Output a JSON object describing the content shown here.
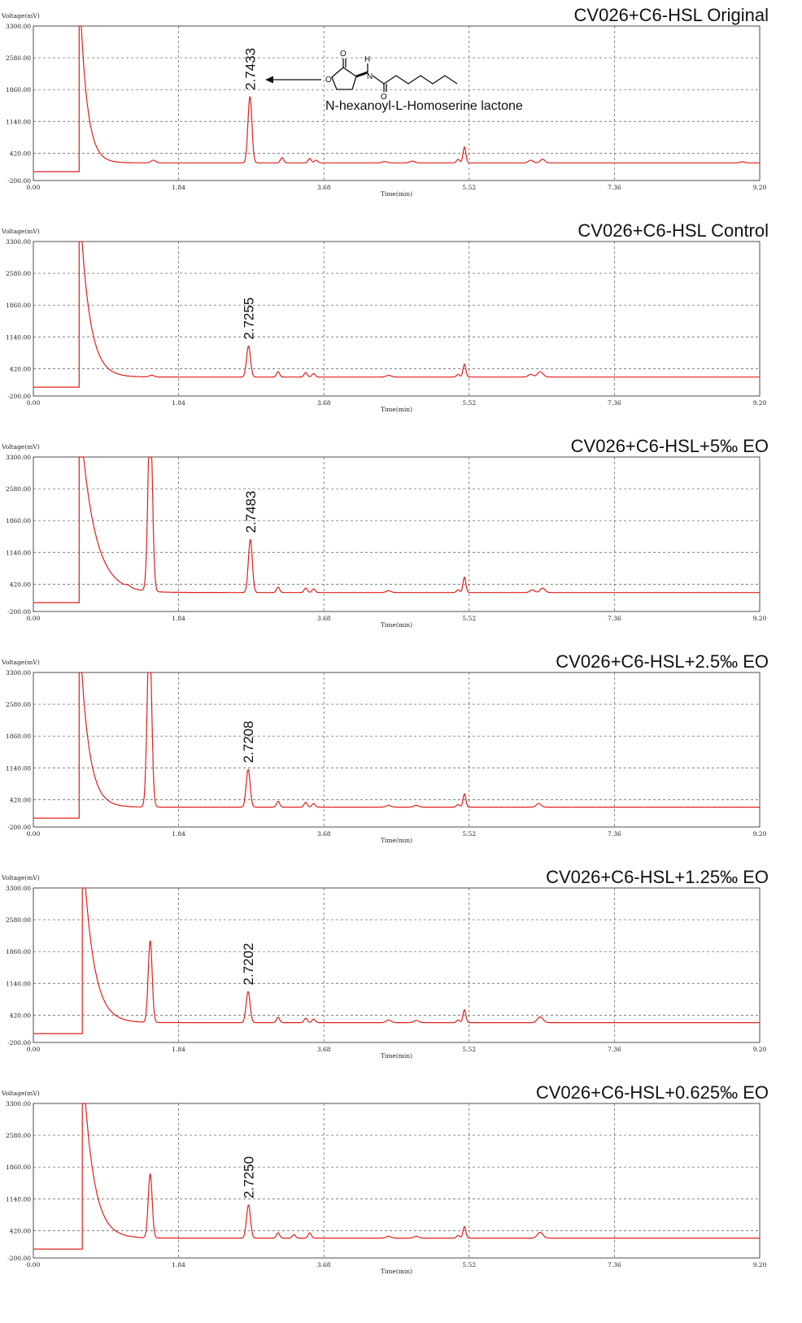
{
  "chart_data": [
    {
      "type": "line",
      "title": "CV026+C6-HSL Original",
      "ylabel": "Voltage(mV)",
      "xlabel": "Time(min)",
      "x_ticks": [
        "0.00",
        "1.84",
        "3.68",
        "5.52",
        "7.36",
        "9.20"
      ],
      "y_ticks": [
        "-200.00",
        "420.00",
        "1140.00",
        "1860.00",
        "2580.00",
        "3300.00"
      ],
      "xlim": [
        0,
        9.2
      ],
      "ylim": [
        -200,
        3300
      ],
      "grid": true,
      "peak_label": {
        "text": "2.7433",
        "x": 2.7433
      },
      "annotation": {
        "text": "N-hexanoyl-L-Homoserine lactone"
      },
      "baseline": 200,
      "solvent_cut": 0.58,
      "decay": 0.09,
      "peaks": [
        {
          "x": 1.52,
          "h": 60,
          "w": 0.03
        },
        {
          "x": 2.7433,
          "h": 1500,
          "w": 0.025
        },
        {
          "x": 3.15,
          "h": 120,
          "w": 0.02
        },
        {
          "x": 3.5,
          "h": 100,
          "w": 0.02
        },
        {
          "x": 3.58,
          "h": 60,
          "w": 0.02
        },
        {
          "x": 4.45,
          "h": 30,
          "w": 0.03
        },
        {
          "x": 4.8,
          "h": 40,
          "w": 0.03
        },
        {
          "x": 5.38,
          "h": 80,
          "w": 0.02
        },
        {
          "x": 5.46,
          "h": 360,
          "w": 0.018
        },
        {
          "x": 6.3,
          "h": 60,
          "w": 0.03
        },
        {
          "x": 6.45,
          "h": 80,
          "w": 0.03
        },
        {
          "x": 8.98,
          "h": 25,
          "w": 0.03
        }
      ]
    },
    {
      "type": "line",
      "title": "CV026+C6-HSL Control",
      "ylabel": "Voltage(mV)",
      "xlabel": "Time(min)",
      "x_ticks": [
        "0.00",
        "1.84",
        "3.68",
        "5.52",
        "7.36",
        "9.20"
      ],
      "y_ticks": [
        "-200.00",
        "420.00",
        "1140.00",
        "1860.00",
        "2580.00",
        "3300.00"
      ],
      "xlim": [
        0,
        9.2
      ],
      "ylim": [
        -200,
        3300
      ],
      "grid": true,
      "peak_label": {
        "text": "2.7255",
        "x": 2.7255
      },
      "baseline": 230,
      "solvent_cut": 0.58,
      "decay": 0.12,
      "peaks": [
        {
          "x": 1.5,
          "h": 40,
          "w": 0.03
        },
        {
          "x": 2.7255,
          "h": 700,
          "w": 0.025
        },
        {
          "x": 3.1,
          "h": 120,
          "w": 0.02
        },
        {
          "x": 3.45,
          "h": 100,
          "w": 0.02
        },
        {
          "x": 3.55,
          "h": 80,
          "w": 0.02
        },
        {
          "x": 4.5,
          "h": 40,
          "w": 0.03
        },
        {
          "x": 5.38,
          "h": 60,
          "w": 0.02
        },
        {
          "x": 5.46,
          "h": 290,
          "w": 0.018
        },
        {
          "x": 6.3,
          "h": 60,
          "w": 0.03
        },
        {
          "x": 6.42,
          "h": 120,
          "w": 0.035
        }
      ]
    },
    {
      "type": "line",
      "title": "CV026+C6-HSL+5‰ EO",
      "ylabel": "Voltage(mV)",
      "xlabel": "Time(min)",
      "x_ticks": [
        "0.00",
        "1.84",
        "3.68",
        "5.52",
        "7.36",
        "9.20"
      ],
      "y_ticks": [
        "-200.00",
        "420.00",
        "1140.00",
        "1860.00",
        "2580.00",
        "3300.00"
      ],
      "xlim": [
        0,
        9.2
      ],
      "ylim": [
        -200,
        3300
      ],
      "grid": true,
      "peak_label": {
        "text": "2.7483",
        "x": 2.7483
      },
      "baseline": 230,
      "solvent_cut": 0.58,
      "decay": 0.18,
      "peaks": [
        {
          "x": 1.2,
          "h": 40,
          "w": 0.03
        },
        {
          "x": 1.48,
          "h": 4000,
          "w": 0.028
        },
        {
          "x": 2.7483,
          "h": 1200,
          "w": 0.025
        },
        {
          "x": 3.1,
          "h": 120,
          "w": 0.02
        },
        {
          "x": 3.45,
          "h": 100,
          "w": 0.02
        },
        {
          "x": 3.55,
          "h": 80,
          "w": 0.02
        },
        {
          "x": 4.5,
          "h": 40,
          "w": 0.03
        },
        {
          "x": 5.38,
          "h": 60,
          "w": 0.02
        },
        {
          "x": 5.46,
          "h": 350,
          "w": 0.018
        },
        {
          "x": 6.32,
          "h": 60,
          "w": 0.03
        },
        {
          "x": 6.45,
          "h": 100,
          "w": 0.03
        }
      ]
    },
    {
      "type": "line",
      "title": "CV026+C6-HSL+2.5‰ EO",
      "ylabel": "Voltage(mV)",
      "xlabel": "Time(min)",
      "x_ticks": [
        "0.00",
        "1.84",
        "3.68",
        "5.52",
        "7.36",
        "9.20"
      ],
      "y_ticks": [
        "-200.00",
        "420.00",
        "1140.00",
        "1860.00",
        "2580.00",
        "3300.00"
      ],
      "xlim": [
        0,
        9.2
      ],
      "ylim": [
        -200,
        3300
      ],
      "grid": true,
      "peak_label": {
        "text": "2.7208",
        "x": 2.7208
      },
      "baseline": 250,
      "solvent_cut": 0.58,
      "decay": 0.11,
      "peaks": [
        {
          "x": 1.47,
          "h": 4000,
          "w": 0.028
        },
        {
          "x": 2.7208,
          "h": 850,
          "w": 0.025
        },
        {
          "x": 3.1,
          "h": 130,
          "w": 0.02
        },
        {
          "x": 3.45,
          "h": 110,
          "w": 0.02
        },
        {
          "x": 3.55,
          "h": 80,
          "w": 0.02
        },
        {
          "x": 4.5,
          "h": 40,
          "w": 0.03
        },
        {
          "x": 4.85,
          "h": 40,
          "w": 0.03
        },
        {
          "x": 5.38,
          "h": 60,
          "w": 0.02
        },
        {
          "x": 5.46,
          "h": 300,
          "w": 0.018
        },
        {
          "x": 6.4,
          "h": 80,
          "w": 0.03
        }
      ]
    },
    {
      "type": "line",
      "title": "CV026+C6-HSL+1.25‰ EO",
      "ylabel": "Voltage(mV)",
      "xlabel": "Time(min)",
      "x_ticks": [
        "0.00",
        "1.84",
        "3.68",
        "5.52",
        "7.36",
        "9.20"
      ],
      "y_ticks": [
        "-200.00",
        "420.00",
        "1140.00",
        "1860.00",
        "2580.00",
        "3300.00"
      ],
      "xlim": [
        0,
        9.2
      ],
      "ylim": [
        -200,
        3300
      ],
      "grid": true,
      "peak_label": {
        "text": "2.7202",
        "x": 2.7202
      },
      "baseline": 250,
      "solvent_cut": 0.62,
      "decay": 0.13,
      "peaks": [
        {
          "x": 1.48,
          "h": 1850,
          "w": 0.025
        },
        {
          "x": 2.7202,
          "h": 700,
          "w": 0.025
        },
        {
          "x": 3.1,
          "h": 120,
          "w": 0.02
        },
        {
          "x": 3.45,
          "h": 100,
          "w": 0.02
        },
        {
          "x": 3.55,
          "h": 80,
          "w": 0.02
        },
        {
          "x": 4.5,
          "h": 60,
          "w": 0.03
        },
        {
          "x": 4.85,
          "h": 50,
          "w": 0.03
        },
        {
          "x": 5.38,
          "h": 60,
          "w": 0.02
        },
        {
          "x": 5.46,
          "h": 290,
          "w": 0.018
        },
        {
          "x": 6.42,
          "h": 130,
          "w": 0.035
        }
      ]
    },
    {
      "type": "line",
      "title": "CV026+C6-HSL+0.625‰ EO",
      "ylabel": "Voltage(mV)",
      "xlabel": "Time(min)",
      "x_ticks": [
        "0.00",
        "1.84",
        "3.68",
        "5.52",
        "7.36",
        "9.20"
      ],
      "y_ticks": [
        "-200.00",
        "420.00",
        "1140.00",
        "1860.00",
        "2580.00",
        "3300.00"
      ],
      "xlim": [
        0,
        9.2
      ],
      "ylim": [
        -200,
        3300
      ],
      "grid": true,
      "peak_label": {
        "text": "2.7250",
        "x": 2.725
      },
      "baseline": 250,
      "solvent_cut": 0.62,
      "decay": 0.13,
      "peaks": [
        {
          "x": 1.48,
          "h": 1450,
          "w": 0.025
        },
        {
          "x": 2.725,
          "h": 750,
          "w": 0.025
        },
        {
          "x": 3.1,
          "h": 120,
          "w": 0.02
        },
        {
          "x": 3.3,
          "h": 80,
          "w": 0.02
        },
        {
          "x": 3.5,
          "h": 120,
          "w": 0.02
        },
        {
          "x": 4.5,
          "h": 40,
          "w": 0.03
        },
        {
          "x": 4.85,
          "h": 40,
          "w": 0.03
        },
        {
          "x": 5.38,
          "h": 60,
          "w": 0.02
        },
        {
          "x": 5.46,
          "h": 260,
          "w": 0.018
        },
        {
          "x": 6.42,
          "h": 130,
          "w": 0.035
        }
      ]
    }
  ],
  "colors": {
    "trace": "#e0201c",
    "grid": "#555555",
    "axis": "#222222"
  }
}
